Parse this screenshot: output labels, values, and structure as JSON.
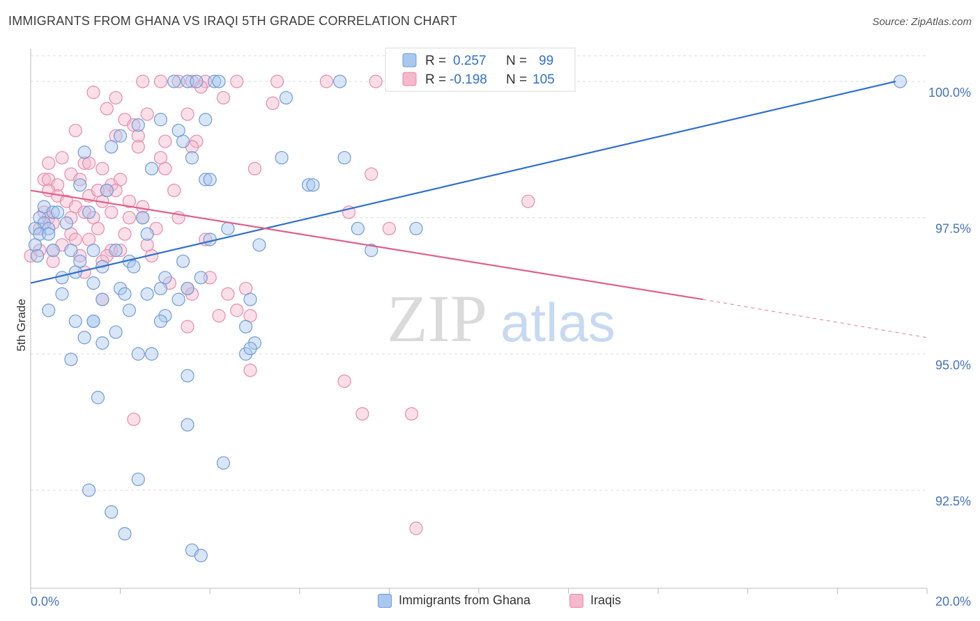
{
  "title": "IMMIGRANTS FROM GHANA VS IRAQI 5TH GRADE CORRELATION CHART",
  "source": "Source: ZipAtlas.com",
  "watermark": {
    "zip": "ZIP",
    "atlas": "atlas"
  },
  "legend": {
    "series1": {
      "r_label": "R = ",
      "r_value": "0.257",
      "n_label": "N = ",
      "n_value": "99"
    },
    "series2": {
      "r_label": "R = ",
      "r_value": "-0.198",
      "n_label": "N = ",
      "n_value": "105"
    }
  },
  "bottom_legend": {
    "series1": "Immigrants from Ghana",
    "series2": "Iraqis"
  },
  "colors": {
    "blue_fill": "#a9c8ef",
    "blue_stroke": "#6f9ad8",
    "blue_line": "#2f6fd0",
    "pink_fill": "#f5b8cc",
    "pink_stroke": "#e98aaa",
    "pink_line": "#e0608a",
    "tick_text": "#4472c4",
    "grid": "#dddddd"
  },
  "chart_data": {
    "type": "scatter",
    "title": "IMMIGRANTS FROM GHANA VS IRAQI 5TH GRADE CORRELATION CHART",
    "xlabel": "",
    "ylabel": "5th Grade",
    "xlim": [
      0,
      20
    ],
    "ylim": [
      90.7,
      100.6
    ],
    "x_tick_labels": [
      "0.0%",
      "20.0%"
    ],
    "y_ticks": [
      92.5,
      95.0,
      97.5,
      100.0
    ],
    "y_tick_labels": [
      "92.5%",
      "95.0%",
      "97.5%",
      "100.0%"
    ],
    "grid": true,
    "series": [
      {
        "name": "Immigrants from Ghana",
        "color": "#6f9ad8",
        "trend": {
          "x": [
            0,
            19.3
          ],
          "y": [
            96.3,
            100.0
          ],
          "dashed_to": null
        },
        "points": [
          [
            3.2,
            100.0
          ],
          [
            3.5,
            100.0
          ],
          [
            3.7,
            100.0
          ],
          [
            4.1,
            100.0
          ],
          [
            4.2,
            100.0
          ],
          [
            6.9,
            100.0
          ],
          [
            8.2,
            100.0
          ],
          [
            8.9,
            100.0
          ],
          [
            19.4,
            100.0
          ],
          [
            5.7,
            99.7
          ],
          [
            2.9,
            99.3
          ],
          [
            3.9,
            99.3
          ],
          [
            2.4,
            99.2
          ],
          [
            3.3,
            99.1
          ],
          [
            2.0,
            99.0
          ],
          [
            3.4,
            98.9
          ],
          [
            1.8,
            98.8
          ],
          [
            1.2,
            98.7
          ],
          [
            3.6,
            98.6
          ],
          [
            5.6,
            98.6
          ],
          [
            7.0,
            98.6
          ],
          [
            2.7,
            98.4
          ],
          [
            3.9,
            98.2
          ],
          [
            4.0,
            98.2
          ],
          [
            6.2,
            98.1
          ],
          [
            1.1,
            98.1
          ],
          [
            1.7,
            98.0
          ],
          [
            0.3,
            97.7
          ],
          [
            0.5,
            97.6
          ],
          [
            0.6,
            97.6
          ],
          [
            1.3,
            97.6
          ],
          [
            0.2,
            97.5
          ],
          [
            0.3,
            97.4
          ],
          [
            0.8,
            97.4
          ],
          [
            0.4,
            97.3
          ],
          [
            0.1,
            97.3
          ],
          [
            0.2,
            97.2
          ],
          [
            0.4,
            97.2
          ],
          [
            4.4,
            97.3
          ],
          [
            7.3,
            97.3
          ],
          [
            8.6,
            97.3
          ],
          [
            2.6,
            97.2
          ],
          [
            4.0,
            97.1
          ],
          [
            0.5,
            96.9
          ],
          [
            1.4,
            96.9
          ],
          [
            0.9,
            96.9
          ],
          [
            1.9,
            96.9
          ],
          [
            7.6,
            96.9
          ],
          [
            1.1,
            96.7
          ],
          [
            1.6,
            96.6
          ],
          [
            2.2,
            96.7
          ],
          [
            3.4,
            96.7
          ],
          [
            2.3,
            96.6
          ],
          [
            0.7,
            96.4
          ],
          [
            3.8,
            96.4
          ],
          [
            3.0,
            96.4
          ],
          [
            1.4,
            96.3
          ],
          [
            2.0,
            96.2
          ],
          [
            2.9,
            96.2
          ],
          [
            2.6,
            96.1
          ],
          [
            3.5,
            96.2
          ],
          [
            0.7,
            96.1
          ],
          [
            2.1,
            96.1
          ],
          [
            1.6,
            96.0
          ],
          [
            4.9,
            96.0
          ],
          [
            0.4,
            95.8
          ],
          [
            2.2,
            95.8
          ],
          [
            3.0,
            95.7
          ],
          [
            1.0,
            95.6
          ],
          [
            1.4,
            95.6
          ],
          [
            1.4,
            95.6
          ],
          [
            2.9,
            95.6
          ],
          [
            4.8,
            95.5
          ],
          [
            1.9,
            95.4
          ],
          [
            1.2,
            95.3
          ],
          [
            1.6,
            95.2
          ],
          [
            5.0,
            95.2
          ],
          [
            4.8,
            95.0
          ],
          [
            4.9,
            95.1
          ],
          [
            2.4,
            95.0
          ],
          [
            2.7,
            95.0
          ],
          [
            0.9,
            94.9
          ],
          [
            3.5,
            94.6
          ],
          [
            1.5,
            94.2
          ],
          [
            3.5,
            93.7
          ],
          [
            4.3,
            93.0
          ],
          [
            2.4,
            92.7
          ],
          [
            1.3,
            92.5
          ],
          [
            1.8,
            92.1
          ],
          [
            2.1,
            91.7
          ],
          [
            3.6,
            91.4
          ],
          [
            3.8,
            91.3
          ],
          [
            0.1,
            97.0
          ],
          [
            0.15,
            96.8
          ],
          [
            6.3,
            98.1
          ],
          [
            3.3,
            96.0
          ],
          [
            5.1,
            97.0
          ],
          [
            1.0,
            96.5
          ],
          [
            2.5,
            97.5
          ]
        ]
      },
      {
        "name": "Iraqis",
        "color": "#e98aaa",
        "trend": {
          "x": [
            0,
            15.0
          ],
          "y": [
            98.0,
            96.0
          ],
          "dashed_to": {
            "x": 20.0,
            "y": 95.3
          }
        },
        "points": [
          [
            2.5,
            100.0
          ],
          [
            2.9,
            100.0
          ],
          [
            3.3,
            100.0
          ],
          [
            3.6,
            100.0
          ],
          [
            3.9,
            100.0
          ],
          [
            4.6,
            100.0
          ],
          [
            5.5,
            100.0
          ],
          [
            6.6,
            100.0
          ],
          [
            7.7,
            100.0
          ],
          [
            3.8,
            99.9
          ],
          [
            1.4,
            99.8
          ],
          [
            1.9,
            99.7
          ],
          [
            4.3,
            99.7
          ],
          [
            5.4,
            99.6
          ],
          [
            1.7,
            99.5
          ],
          [
            2.6,
            99.4
          ],
          [
            3.5,
            99.4
          ],
          [
            2.1,
            99.3
          ],
          [
            2.3,
            99.2
          ],
          [
            1.9,
            99.0
          ],
          [
            2.4,
            99.0
          ],
          [
            3.0,
            98.9
          ],
          [
            3.7,
            98.9
          ],
          [
            2.4,
            98.8
          ],
          [
            3.6,
            98.8
          ],
          [
            0.7,
            98.6
          ],
          [
            1.2,
            98.5
          ],
          [
            1.3,
            98.5
          ],
          [
            1.6,
            98.4
          ],
          [
            3.0,
            98.4
          ],
          [
            0.9,
            98.3
          ],
          [
            7.6,
            98.3
          ],
          [
            0.3,
            98.2
          ],
          [
            0.4,
            98.2
          ],
          [
            1.1,
            98.2
          ],
          [
            1.8,
            98.1
          ],
          [
            2.0,
            98.2
          ],
          [
            0.6,
            98.1
          ],
          [
            0.4,
            98.0
          ],
          [
            1.7,
            98.0
          ],
          [
            0.6,
            97.9
          ],
          [
            1.9,
            98.0
          ],
          [
            3.2,
            98.0
          ],
          [
            1.3,
            97.9
          ],
          [
            1.6,
            97.8
          ],
          [
            2.2,
            97.8
          ],
          [
            0.8,
            97.8
          ],
          [
            1.0,
            97.7
          ],
          [
            2.5,
            97.7
          ],
          [
            0.3,
            97.6
          ],
          [
            1.2,
            97.6
          ],
          [
            1.4,
            97.5
          ],
          [
            2.2,
            97.5
          ],
          [
            2.5,
            97.5
          ],
          [
            0.4,
            97.5
          ],
          [
            7.1,
            97.6
          ],
          [
            11.1,
            97.8
          ],
          [
            0.5,
            97.4
          ],
          [
            2.8,
            97.3
          ],
          [
            8.0,
            97.3
          ],
          [
            0.9,
            97.2
          ],
          [
            2.1,
            97.2
          ],
          [
            1.0,
            97.1
          ],
          [
            1.3,
            97.1
          ],
          [
            3.9,
            97.1
          ],
          [
            0.5,
            96.9
          ],
          [
            1.8,
            96.9
          ],
          [
            2.7,
            96.8
          ],
          [
            1.1,
            96.8
          ],
          [
            1.7,
            96.8
          ],
          [
            1.6,
            96.7
          ],
          [
            0.0,
            96.8
          ],
          [
            3.5,
            96.2
          ],
          [
            3.6,
            96.1
          ],
          [
            4.4,
            96.1
          ],
          [
            4.8,
            96.2
          ],
          [
            1.6,
            96.0
          ],
          [
            4.6,
            95.8
          ],
          [
            4.2,
            95.7
          ],
          [
            4.9,
            95.7
          ],
          [
            3.5,
            95.5
          ],
          [
            4.9,
            94.7
          ],
          [
            7.0,
            94.5
          ],
          [
            7.4,
            93.9
          ],
          [
            8.5,
            93.9
          ],
          [
            2.3,
            93.8
          ],
          [
            8.6,
            91.8
          ],
          [
            0.2,
            96.9
          ],
          [
            0.9,
            97.5
          ],
          [
            1.5,
            97.3
          ],
          [
            2.0,
            96.9
          ],
          [
            3.1,
            96.3
          ],
          [
            1.2,
            96.5
          ],
          [
            4.0,
            96.4
          ],
          [
            0.7,
            97.0
          ],
          [
            0.2,
            97.3
          ],
          [
            1.8,
            97.6
          ],
          [
            2.6,
            97.0
          ],
          [
            3.3,
            97.5
          ],
          [
            1.5,
            98.0
          ],
          [
            0.4,
            98.5
          ],
          [
            2.9,
            98.6
          ],
          [
            5.0,
            98.4
          ],
          [
            1.0,
            99.1
          ],
          [
            0.5,
            96.7
          ]
        ]
      }
    ]
  }
}
